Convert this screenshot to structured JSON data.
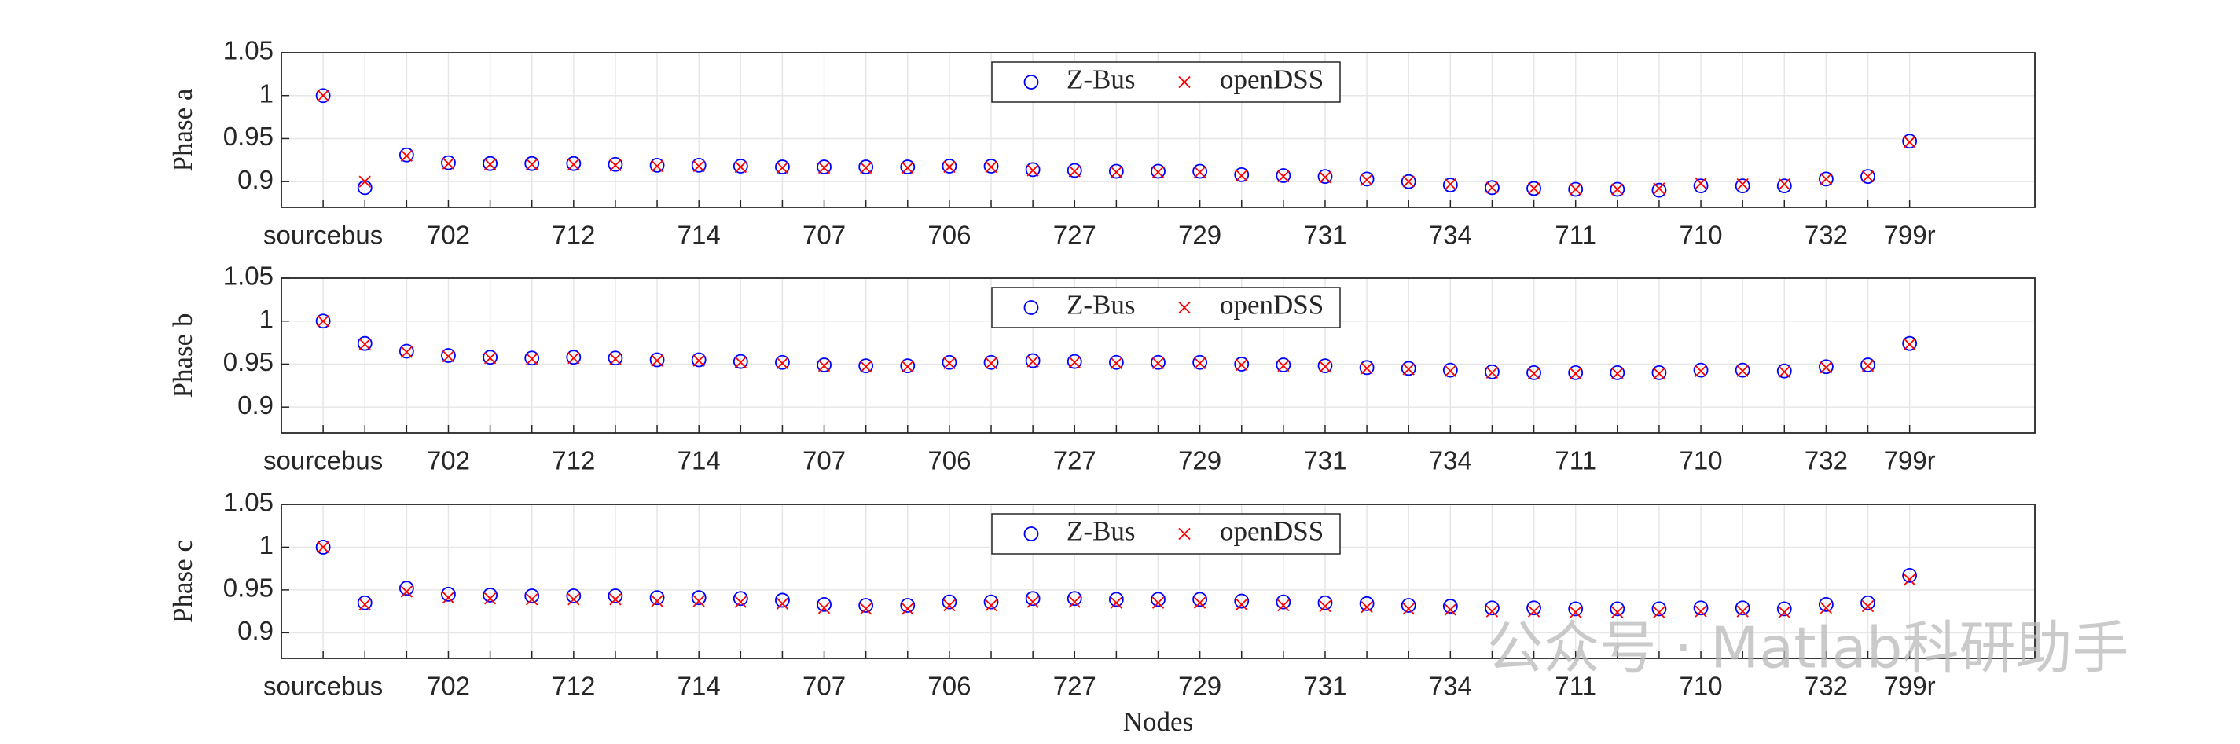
{
  "chart_data": [
    {
      "type": "scatter",
      "ylabel": "Phase a",
      "legend": "upper center",
      "grid": true,
      "categories": [
        "sourcebus",
        null,
        null,
        "702",
        null,
        null,
        "712",
        null,
        null,
        "714",
        null,
        null,
        "707",
        null,
        null,
        "706",
        null,
        null,
        "727",
        null,
        null,
        "729",
        null,
        null,
        "731",
        null,
        null,
        "734",
        null,
        null,
        "711",
        null,
        null,
        "710",
        null,
        null,
        "732",
        null,
        "799r"
      ],
      "ylim": [
        0.87,
        1.05
      ],
      "yticks": [
        0.9,
        0.95,
        1,
        1.05
      ],
      "series": [
        {
          "name": "Z-Bus",
          "color": "#0000ff",
          "marker": "circle",
          "values": [
            1.0,
            0.893,
            0.931,
            0.922,
            0.921,
            0.921,
            0.921,
            0.92,
            0.919,
            0.919,
            0.918,
            0.917,
            0.917,
            0.917,
            0.917,
            0.918,
            0.918,
            0.914,
            0.913,
            0.912,
            0.912,
            0.912,
            0.908,
            0.907,
            0.906,
            0.903,
            0.9,
            0.896,
            0.893,
            0.892,
            0.891,
            0.891,
            0.89,
            0.895,
            0.895,
            0.895,
            0.903,
            0.906,
            0.947
          ]
        },
        {
          "name": "openDSS",
          "color": "#ff0000",
          "marker": "x",
          "values": [
            1.0,
            0.9,
            0.93,
            0.921,
            0.92,
            0.92,
            0.92,
            0.919,
            0.918,
            0.918,
            0.917,
            0.916,
            0.916,
            0.916,
            0.916,
            0.917,
            0.917,
            0.913,
            0.912,
            0.911,
            0.911,
            0.911,
            0.907,
            0.906,
            0.905,
            0.902,
            0.9,
            0.897,
            0.893,
            0.892,
            0.891,
            0.891,
            0.892,
            0.898,
            0.897,
            0.897,
            0.903,
            0.906,
            0.946
          ]
        }
      ]
    },
    {
      "type": "scatter",
      "ylabel": "Phase b",
      "legend": "upper center",
      "grid": true,
      "categories": [
        "sourcebus",
        null,
        null,
        "702",
        null,
        null,
        "712",
        null,
        null,
        "714",
        null,
        null,
        "707",
        null,
        null,
        "706",
        null,
        null,
        "727",
        null,
        null,
        "729",
        null,
        null,
        "731",
        null,
        null,
        "734",
        null,
        null,
        "711",
        null,
        null,
        "710",
        null,
        null,
        "732",
        null,
        "799r"
      ],
      "ylim": [
        0.87,
        1.05
      ],
      "yticks": [
        0.9,
        0.95,
        1,
        1.05
      ],
      "series": [
        {
          "name": "Z-Bus",
          "color": "#0000ff",
          "marker": "circle",
          "values": [
            1.0,
            0.974,
            0.965,
            0.96,
            0.958,
            0.957,
            0.958,
            0.957,
            0.955,
            0.955,
            0.953,
            0.952,
            0.949,
            0.948,
            0.948,
            0.952,
            0.952,
            0.954,
            0.953,
            0.952,
            0.952,
            0.952,
            0.95,
            0.949,
            0.948,
            0.946,
            0.945,
            0.943,
            0.941,
            0.94,
            0.94,
            0.94,
            0.94,
            0.943,
            0.943,
            0.942,
            0.947,
            0.949,
            0.974
          ]
        },
        {
          "name": "openDSS",
          "color": "#ff0000",
          "marker": "x",
          "values": [
            1.0,
            0.973,
            0.964,
            0.959,
            0.957,
            0.956,
            0.957,
            0.956,
            0.954,
            0.954,
            0.952,
            0.951,
            0.948,
            0.947,
            0.947,
            0.951,
            0.951,
            0.953,
            0.952,
            0.951,
            0.951,
            0.951,
            0.949,
            0.948,
            0.947,
            0.945,
            0.944,
            0.942,
            0.94,
            0.939,
            0.939,
            0.939,
            0.939,
            0.942,
            0.942,
            0.941,
            0.946,
            0.948,
            0.973
          ]
        }
      ]
    },
    {
      "type": "scatter",
      "ylabel": "Phase c",
      "xlabel": "Nodes",
      "legend": "upper center",
      "grid": true,
      "categories": [
        "sourcebus",
        null,
        null,
        "702",
        null,
        null,
        "712",
        null,
        null,
        "714",
        null,
        null,
        "707",
        null,
        null,
        "706",
        null,
        null,
        "727",
        null,
        null,
        "729",
        null,
        null,
        "731",
        null,
        null,
        "734",
        null,
        null,
        "711",
        null,
        null,
        "710",
        null,
        null,
        "732",
        null,
        "799r"
      ],
      "ylim": [
        0.87,
        1.05
      ],
      "yticks": [
        0.9,
        0.95,
        1,
        1.05
      ],
      "series": [
        {
          "name": "Z-Bus",
          "color": "#0000ff",
          "marker": "circle",
          "values": [
            1.0,
            0.935,
            0.952,
            0.945,
            0.944,
            0.943,
            0.943,
            0.943,
            0.941,
            0.941,
            0.94,
            0.938,
            0.933,
            0.932,
            0.932,
            0.936,
            0.936,
            0.94,
            0.94,
            0.939,
            0.939,
            0.939,
            0.937,
            0.936,
            0.935,
            0.934,
            0.932,
            0.931,
            0.929,
            0.929,
            0.928,
            0.928,
            0.928,
            0.929,
            0.929,
            0.928,
            0.933,
            0.935,
            0.967
          ]
        },
        {
          "name": "openDSS",
          "color": "#ff0000",
          "marker": "x",
          "values": [
            1.0,
            0.933,
            0.948,
            0.941,
            0.94,
            0.939,
            0.939,
            0.939,
            0.937,
            0.937,
            0.936,
            0.934,
            0.929,
            0.928,
            0.928,
            0.932,
            0.932,
            0.936,
            0.936,
            0.935,
            0.935,
            0.935,
            0.933,
            0.932,
            0.931,
            0.93,
            0.928,
            0.927,
            0.925,
            0.925,
            0.924,
            0.924,
            0.924,
            0.925,
            0.925,
            0.924,
            0.929,
            0.931,
            0.962
          ]
        }
      ]
    }
  ],
  "watermark": "公众号 · Matlab科研助手"
}
